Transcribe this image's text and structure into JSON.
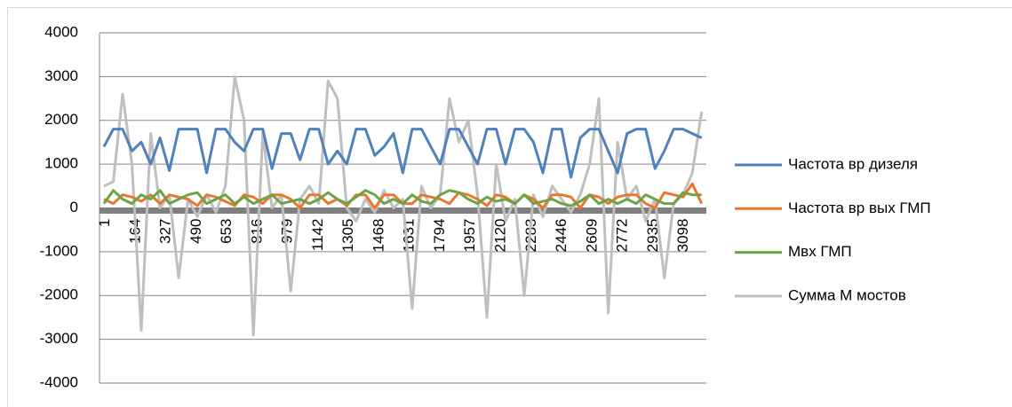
{
  "chart_data": {
    "type": "line",
    "x": [
      1,
      51,
      101,
      151,
      201,
      251,
      301,
      351,
      401,
      451,
      501,
      551,
      601,
      651,
      701,
      751,
      801,
      851,
      901,
      951,
      1001,
      1051,
      1101,
      1151,
      1201,
      1251,
      1301,
      1351,
      1401,
      1451,
      1501,
      1551,
      1601,
      1651,
      1701,
      1751,
      1801,
      1851,
      1901,
      1951,
      2001,
      2051,
      2101,
      2151,
      2201,
      2251,
      2301,
      2351,
      2401,
      2451,
      2501,
      2551,
      2601,
      2651,
      2701,
      2751,
      2801,
      2851,
      2901,
      2951,
      3001,
      3051,
      3101,
      3151,
      3201
    ],
    "xlim": [
      1,
      3226
    ],
    "xticks": [
      1,
      164,
      327,
      490,
      653,
      816,
      979,
      1142,
      1305,
      1468,
      1631,
      1794,
      1957,
      2120,
      2283,
      2446,
      2609,
      2772,
      2935,
      3098
    ],
    "ylim": [
      -4000,
      4000
    ],
    "yticks": [
      -4000,
      -3000,
      -2000,
      -1000,
      0,
      1000,
      2000,
      3000,
      4000
    ],
    "grid": true,
    "legend": "right",
    "series": [
      {
        "name": "Частота вр дизеля",
        "color": "#4f81bd",
        "values": [
          1400,
          1800,
          1800,
          1300,
          1500,
          1000,
          1600,
          850,
          1800,
          1800,
          1800,
          800,
          1800,
          1800,
          1500,
          1300,
          1800,
          1800,
          900,
          1700,
          1700,
          1100,
          1800,
          1800,
          1000,
          1300,
          1000,
          1800,
          1800,
          1200,
          1400,
          1700,
          800,
          1800,
          1800,
          1400,
          1000,
          1800,
          1800,
          1400,
          1000,
          1800,
          1800,
          1000,
          1800,
          1800,
          1500,
          800,
          1800,
          1800,
          700,
          1600,
          1800,
          1800,
          1300,
          800,
          1700,
          1800,
          1800,
          900,
          1300,
          1800,
          1800,
          1700,
          1600
        ]
      },
      {
        "name": "Частота вр вых ГМП",
        "color": "#e8782f",
        "values": [
          200,
          100,
          300,
          250,
          150,
          300,
          100,
          300,
          250,
          200,
          50,
          300,
          250,
          150,
          50,
          300,
          250,
          100,
          300,
          300,
          200,
          0,
          300,
          300,
          100,
          200,
          50,
          300,
          300,
          0,
          300,
          300,
          100,
          100,
          300,
          250,
          200,
          100,
          350,
          300,
          200,
          50,
          300,
          250,
          100,
          300,
          200,
          0,
          300,
          300,
          250,
          0,
          300,
          250,
          100,
          250,
          300,
          300,
          100,
          0,
          350,
          300,
          250,
          550,
          100
        ]
      },
      {
        "name": "Мвх ГМП",
        "color": "#6aa446",
        "values": [
          100,
          400,
          200,
          100,
          300,
          200,
          400,
          100,
          200,
          300,
          350,
          100,
          200,
          300,
          100,
          250,
          100,
          200,
          300,
          100,
          150,
          200,
          100,
          200,
          350,
          200,
          100,
          250,
          400,
          300,
          100,
          200,
          100,
          300,
          150,
          100,
          300,
          400,
          350,
          200,
          100,
          250,
          150,
          200,
          100,
          300,
          100,
          150,
          200,
          100,
          50,
          150,
          300,
          100,
          200,
          100,
          200,
          100,
          300,
          200,
          100,
          100,
          350,
          300,
          300
        ]
      },
      {
        "name": "Сумма М мостов",
        "color": "#bfbfbf",
        "values": [
          500,
          600,
          2600,
          1000,
          -2800,
          1700,
          0,
          300,
          -1600,
          200,
          -200,
          300,
          -100,
          500,
          3000,
          2000,
          -2900,
          1700,
          0,
          300,
          -1900,
          200,
          500,
          100,
          2900,
          2500,
          0,
          -300,
          200,
          -100,
          400,
          0,
          200,
          -2300,
          500,
          0,
          300,
          2500,
          1500,
          2000,
          300,
          -2500,
          1000,
          -300,
          200,
          -2000,
          300,
          -200,
          500,
          200,
          -100,
          300,
          1000,
          2500,
          -2400,
          1500,
          200,
          500,
          -300,
          200,
          -1600,
          100,
          300,
          800,
          2200
        ]
      }
    ]
  }
}
